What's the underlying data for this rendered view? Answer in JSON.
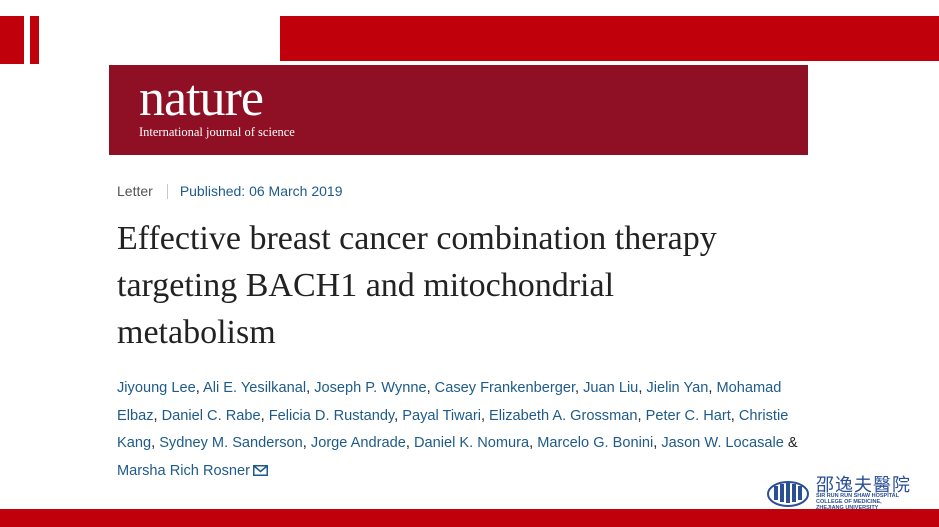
{
  "banner": {
    "logo": "nature",
    "tagline": "International journal of science"
  },
  "article": {
    "type": "Letter",
    "published": "Published: 06 March 2019",
    "title": "Effective breast cancer combination therapy targeting BACH1 and mitochondrial metabolism",
    "authors": [
      "Jiyoung Lee",
      "Ali E. Yesilkanal",
      "Joseph P. Wynne",
      "Casey Frankenberger",
      "Juan Liu",
      "Jielin Yan",
      "Mohamad Elbaz",
      "Daniel C. Rabe",
      "Felicia D. Rustandy",
      "Payal Tiwari",
      "Elizabeth A. Grossman",
      "Peter C. Hart",
      "Christie Kang",
      "Sydney M. Sanderson",
      "Jorge Andrade",
      "Daniel K. Nomura",
      "Marcelo G. Bonini",
      "Jason W. Locasale",
      "Marsha Rich Rosner"
    ],
    "last_author_joiner": "&",
    "contact_icon": "envelope-icon"
  },
  "hospital": {
    "name_cn": "邵逸夫醫院",
    "name_en_lines": [
      "SIR RUN RUN SHAW HOSPITAL",
      "COLLEGE OF MEDICINE,",
      "ZHEJIANG UNIVERSITY"
    ]
  },
  "colors": {
    "slide_red": "#c0000b",
    "banner_red": "#8f0f25",
    "link_blue": "#1e5b8a",
    "hospital_blue": "#2a4f95"
  }
}
